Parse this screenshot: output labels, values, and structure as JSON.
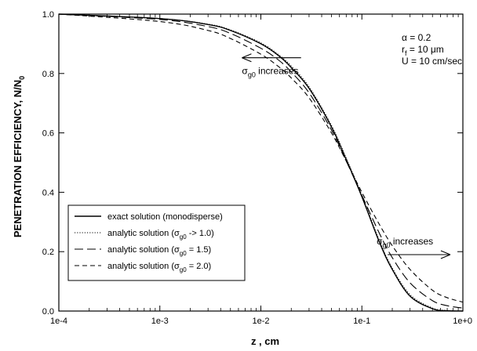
{
  "chart_data": {
    "type": "line",
    "xscale": "log",
    "xlim": [
      0.0001,
      1
    ],
    "ylim": [
      0.0,
      1.0
    ],
    "xlabel": "z , cm",
    "ylabel": "PENETRATION EFFICIENCY, N/N0",
    "ylabel_main": "PENETRATION EFFICIENCY,  N/N",
    "ylabel_sub": "0",
    "xticks": [
      {
        "value": 0.0001,
        "label": "1e-4"
      },
      {
        "value": 0.001,
        "label": "1e-3"
      },
      {
        "value": 0.01,
        "label": "1e-2"
      },
      {
        "value": 0.1,
        "label": "1e-1"
      },
      {
        "value": 1,
        "label": "1e+0"
      }
    ],
    "yticks": [
      {
        "value": 0.0,
        "label": "0.0"
      },
      {
        "value": 0.2,
        "label": "0.2"
      },
      {
        "value": 0.4,
        "label": "0.4"
      },
      {
        "value": 0.6,
        "label": "0.6"
      },
      {
        "value": 0.8,
        "label": "0.8"
      },
      {
        "value": 1.0,
        "label": "1.0"
      }
    ],
    "grid": false,
    "legend_position": "bottom-left",
    "series": [
      {
        "name": "exact solution (monodisperse)",
        "style": "solid",
        "x": [
          0.0001,
          0.001,
          0.003,
          0.005,
          0.01,
          0.015,
          0.02,
          0.03,
          0.05,
          0.07,
          0.1,
          0.15,
          0.2,
          0.3,
          0.5,
          0.7,
          1.0
        ],
        "y": [
          1.0,
          0.985,
          0.965,
          0.945,
          0.9,
          0.86,
          0.82,
          0.75,
          0.62,
          0.51,
          0.385,
          0.23,
          0.14,
          0.05,
          0.008,
          0.001,
          0.0
        ]
      },
      {
        "name": "analytic solution (σg0 -> 1.0)",
        "style": "dotted",
        "x": [
          0.0001,
          0.001,
          0.003,
          0.005,
          0.01,
          0.015,
          0.02,
          0.03,
          0.05,
          0.07,
          0.1,
          0.15,
          0.2,
          0.3,
          0.5,
          0.7,
          1.0
        ],
        "y": [
          1.0,
          0.985,
          0.966,
          0.947,
          0.903,
          0.863,
          0.825,
          0.755,
          0.625,
          0.515,
          0.39,
          0.235,
          0.145,
          0.055,
          0.01,
          0.002,
          0.0
        ]
      },
      {
        "name": "analytic solution (σg0 = 1.5)",
        "style": "longdash",
        "x": [
          0.0001,
          0.001,
          0.003,
          0.005,
          0.01,
          0.015,
          0.02,
          0.03,
          0.05,
          0.07,
          0.1,
          0.15,
          0.2,
          0.3,
          0.5,
          0.7,
          1.0
        ],
        "y": [
          1.0,
          0.982,
          0.958,
          0.935,
          0.885,
          0.845,
          0.805,
          0.735,
          0.61,
          0.505,
          0.39,
          0.26,
          0.18,
          0.095,
          0.035,
          0.018,
          0.01
        ]
      },
      {
        "name": "analytic solution (σg0 = 2.0)",
        "style": "shortdash",
        "x": [
          0.0001,
          0.001,
          0.003,
          0.005,
          0.01,
          0.015,
          0.02,
          0.03,
          0.05,
          0.07,
          0.1,
          0.15,
          0.2,
          0.3,
          0.5,
          0.7,
          1.0
        ],
        "y": [
          1.0,
          0.975,
          0.945,
          0.918,
          0.865,
          0.823,
          0.785,
          0.718,
          0.6,
          0.505,
          0.4,
          0.29,
          0.22,
          0.14,
          0.07,
          0.045,
          0.03
        ]
      }
    ],
    "legend": [
      {
        "pre": "exact solution (monodisperse)",
        "sub": "",
        "post": ""
      },
      {
        "pre": "analytic solution (σ",
        "sub": "g0",
        "post": " -> 1.0)"
      },
      {
        "pre": "analytic solution (σ",
        "sub": "g0",
        "post": " = 1.5)"
      },
      {
        "pre": "analytic solution (σ",
        "sub": "g0",
        "post": " = 2.0)"
      }
    ],
    "params": [
      {
        "pre": "α = 0.2",
        "sub": "",
        "post": ""
      },
      {
        "pre": "r",
        "sub": "f",
        "post": " = 10 μm"
      },
      {
        "pre": "U = 10 cm/sec",
        "sub": "",
        "post": ""
      }
    ],
    "annotations": [
      {
        "sym": "σ",
        "sub": "g0",
        "text": " increases",
        "arrow": "left",
        "x_from": 0.025,
        "x_to": 0.0065,
        "y": 0.853
      },
      {
        "sym": "σ",
        "sub": "g0",
        "text": " increases",
        "arrow": "right",
        "x_from": 0.18,
        "x_to": 0.75,
        "y": 0.19
      }
    ]
  }
}
